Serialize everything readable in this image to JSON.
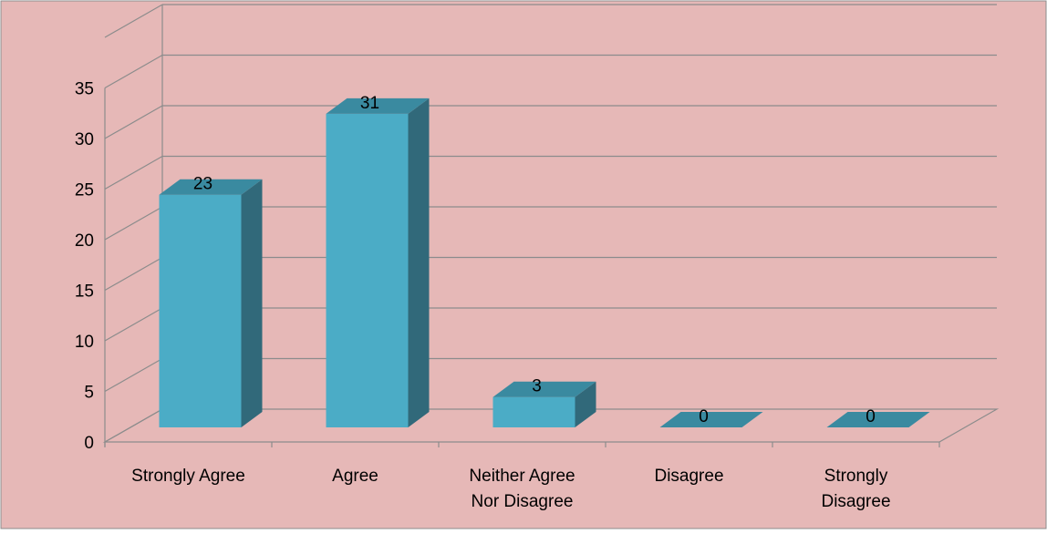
{
  "chart_data": {
    "type": "bar",
    "categories": [
      [
        "Strongly Agree"
      ],
      [
        "Agree"
      ],
      [
        "Neither Agree",
        "Nor Disagree"
      ],
      [
        "Disagree"
      ],
      [
        "Strongly",
        "Disagree"
      ]
    ],
    "values": [
      23,
      31,
      3,
      0,
      0
    ],
    "data_labels": [
      "23",
      "31",
      "3",
      "0",
      "0"
    ],
    "ylim": [
      0,
      35
    ],
    "yticks": [
      "0",
      "5",
      "10",
      "15",
      "20",
      "25",
      "30",
      "35"
    ],
    "title": "",
    "xlabel": "",
    "ylabel": "",
    "grid": true,
    "legend": "none",
    "three_d": true,
    "colors": {
      "background": "#e6b8b7",
      "border": "#8c8c8c",
      "gridline": "#8c8c8c",
      "bar_front": "#4bacc6",
      "bar_top": "#3a8aa0",
      "bar_side": "#31697a"
    }
  }
}
